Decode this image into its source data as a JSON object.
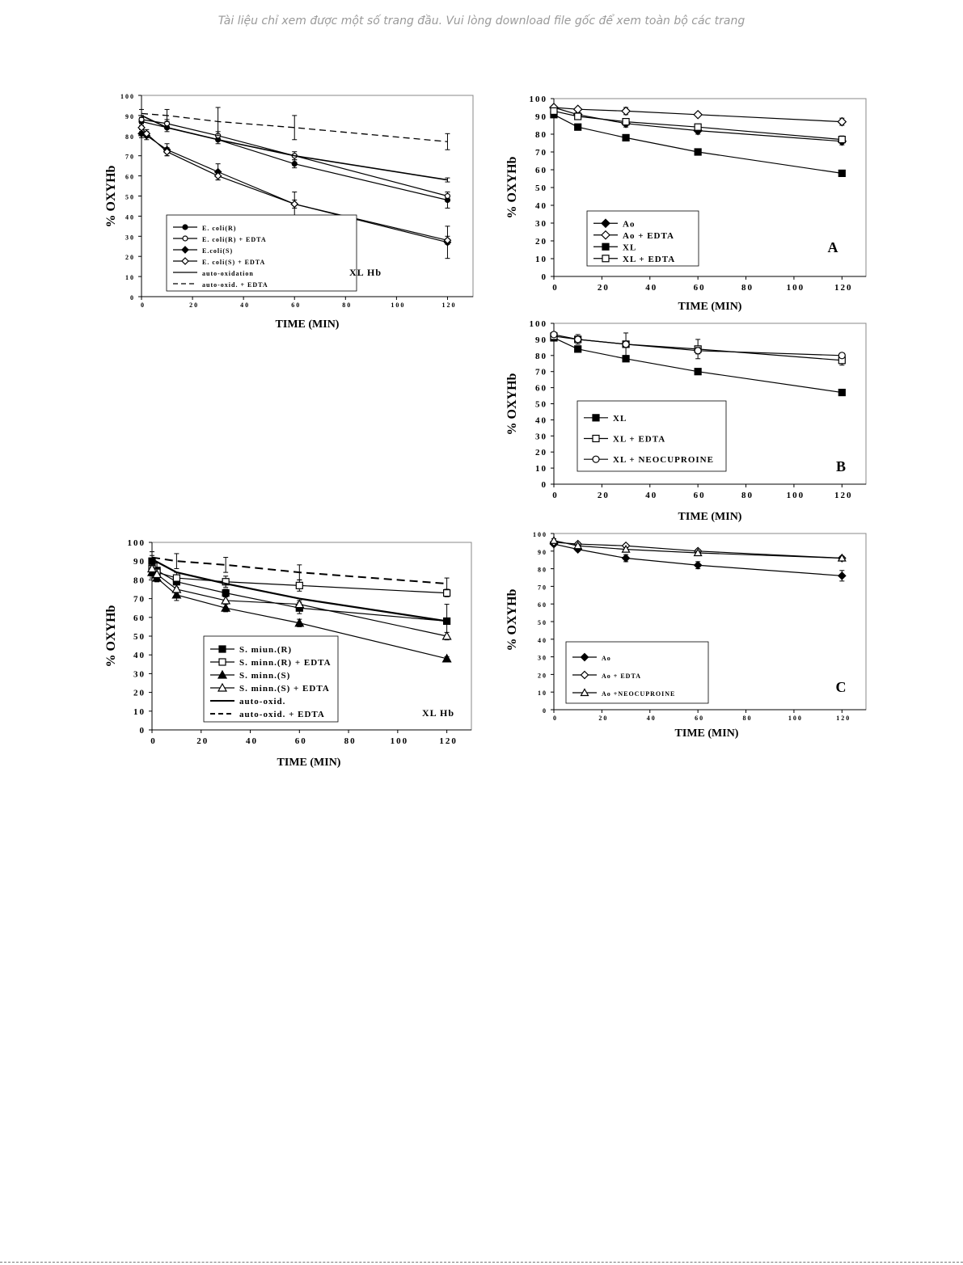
{
  "banner": "Tài liệu chỉ xem được một số trang đầu. Vui lòng download file gốc để xem toàn bộ các trang",
  "chart_data": [
    {
      "id": "ecoli",
      "type": "line",
      "title": "",
      "xlabel": "TIME (MIN)",
      "ylabel": "% OXYHb",
      "xlim": [
        0,
        130
      ],
      "ylim": [
        0,
        100
      ],
      "xticks": [
        "0",
        "20",
        "40",
        "60",
        "80",
        "100",
        "120"
      ],
      "yticks": [
        "0",
        "10",
        "20",
        "30",
        "40",
        "50",
        "60",
        "70",
        "80",
        "90",
        "100"
      ],
      "annotation": "XL Hb",
      "legend_position": "bottom-left",
      "series": [
        {
          "name": "E. coli(R)",
          "marker": "circle-filled",
          "x": [
            0,
            10,
            30,
            60,
            120
          ],
          "y": [
            87,
            84,
            78,
            66,
            48
          ],
          "err": [
            2,
            2,
            2,
            2,
            4
          ]
        },
        {
          "name": "E. coli(R) + EDTA",
          "marker": "circle-open",
          "x": [
            0,
            10,
            30,
            60,
            120
          ],
          "y": [
            88,
            86,
            80,
            70,
            50
          ],
          "err": [
            2,
            2,
            2,
            2,
            2
          ]
        },
        {
          "name": "E.coli(S)",
          "marker": "diamond-filled",
          "x": [
            0,
            2,
            10,
            30,
            60,
            120
          ],
          "y": [
            81,
            80,
            73,
            62,
            46,
            27
          ],
          "err": [
            2,
            2,
            3,
            4,
            6,
            8
          ]
        },
        {
          "name": "E. coli(S) + EDTA",
          "marker": "diamond-open",
          "x": [
            0,
            2,
            10,
            30,
            60,
            120
          ],
          "y": [
            84,
            81,
            72,
            60,
            46,
            28
          ],
          "err": [
            2,
            2,
            2,
            2,
            2,
            2
          ]
        },
        {
          "name": "auto-oxidation",
          "marker": "none",
          "line": "solid",
          "x": [
            0,
            10,
            30,
            60,
            120
          ],
          "y": [
            90,
            84,
            78,
            70,
            58
          ],
          "err": [
            0,
            0,
            0,
            0,
            1
          ]
        },
        {
          "name": "auto-oxid. + EDTA",
          "marker": "none",
          "line": "dashed",
          "x": [
            0,
            10,
            30,
            60,
            120
          ],
          "y": [
            91,
            90,
            87,
            84,
            77
          ],
          "err": [
            2,
            3,
            7,
            6,
            4
          ]
        }
      ]
    },
    {
      "id": "panelA",
      "type": "line",
      "title": "",
      "xlabel": "TIME (MIN)",
      "ylabel": "% OXYHb",
      "xlim": [
        0,
        130
      ],
      "ylim": [
        0,
        100
      ],
      "xticks": [
        "0",
        "20",
        "40",
        "60",
        "80",
        "100",
        "120"
      ],
      "yticks": [
        "0",
        "10",
        "20",
        "30",
        "40",
        "50",
        "60",
        "70",
        "80",
        "90",
        "100"
      ],
      "panel_letter": "A",
      "legend_position": "bottom-left",
      "series": [
        {
          "name": "Ao",
          "marker": "diamond-filled",
          "x": [
            0,
            10,
            30,
            60,
            120
          ],
          "y": [
            95,
            91,
            86,
            82,
            76
          ],
          "err": [
            1,
            1,
            2,
            2,
            2
          ]
        },
        {
          "name": "Ao + EDTA",
          "marker": "diamond-open",
          "x": [
            0,
            10,
            30,
            60,
            120
          ],
          "y": [
            95,
            94,
            93,
            91,
            87
          ],
          "err": [
            1,
            1,
            2,
            1,
            2
          ]
        },
        {
          "name": "XL",
          "marker": "square-filled",
          "x": [
            0,
            10,
            30,
            60,
            120
          ],
          "y": [
            91,
            84,
            78,
            70,
            58
          ],
          "err": [
            0,
            0,
            0,
            0,
            0
          ]
        },
        {
          "name": "XL + EDTA",
          "marker": "square-open",
          "x": [
            0,
            10,
            30,
            60,
            120
          ],
          "y": [
            93,
            90,
            87,
            84,
            77
          ],
          "err": [
            1,
            1,
            1,
            1,
            2
          ]
        }
      ]
    },
    {
      "id": "panelB",
      "type": "line",
      "title": "",
      "xlabel": "TIME (MIN)",
      "ylabel": "% OXYHb",
      "xlim": [
        0,
        130
      ],
      "ylim": [
        0,
        100
      ],
      "xticks": [
        "0",
        "20",
        "40",
        "60",
        "80",
        "100",
        "120"
      ],
      "yticks": [
        "0",
        "10",
        "20",
        "30",
        "40",
        "50",
        "60",
        "70",
        "80",
        "90",
        "100"
      ],
      "panel_letter": "B",
      "legend_position": "bottom-center",
      "series": [
        {
          "name": "XL",
          "marker": "square-filled",
          "x": [
            0,
            10,
            30,
            60,
            120
          ],
          "y": [
            91,
            84,
            78,
            70,
            57
          ],
          "err": [
            0,
            0,
            0,
            0,
            0
          ]
        },
        {
          "name": "XL + EDTA",
          "marker": "square-open",
          "x": [
            0,
            10,
            30,
            60,
            120
          ],
          "y": [
            92,
            90,
            87,
            84,
            77
          ],
          "err": [
            2,
            3,
            7,
            6,
            3
          ]
        },
        {
          "name": "XL + NEOCUPROINE",
          "marker": "circle-open",
          "x": [
            0,
            10,
            30,
            60,
            120
          ],
          "y": [
            93,
            90,
            87,
            83,
            80
          ],
          "err": [
            1,
            2,
            2,
            2,
            1
          ]
        }
      ]
    },
    {
      "id": "sminn",
      "type": "line",
      "title": "",
      "xlabel": "TIME (MIN)",
      "ylabel": "% OXYHb",
      "xlim": [
        0,
        130
      ],
      "ylim": [
        0,
        100
      ],
      "xticks": [
        "0",
        "20",
        "40",
        "60",
        "80",
        "100",
        "120"
      ],
      "yticks": [
        "0",
        "10",
        "20",
        "30",
        "40",
        "50",
        "60",
        "70",
        "80",
        "90",
        "100"
      ],
      "annotation": "XL Hb",
      "legend_position": "bottom-center",
      "series": [
        {
          "name": "S. miun.(R)",
          "marker": "square-filled",
          "x": [
            0,
            2,
            10,
            30,
            60,
            120
          ],
          "y": [
            90,
            85,
            79,
            73,
            65,
            58
          ],
          "err": [
            3,
            4,
            3,
            2,
            3,
            9
          ]
        },
        {
          "name": "S. minn.(R) + EDTA",
          "marker": "square-open",
          "x": [
            0,
            2,
            10,
            30,
            60,
            120
          ],
          "y": [
            86,
            84,
            81,
            79,
            77,
            73
          ],
          "err": [
            4,
            5,
            3,
            3,
            3,
            2
          ]
        },
        {
          "name": "S. minn.(S)",
          "marker": "triangle-filled",
          "x": [
            0,
            2,
            10,
            30,
            60,
            120
          ],
          "y": [
            84,
            81,
            72,
            65,
            57,
            38
          ],
          "err": [
            3,
            2,
            3,
            2,
            2,
            1
          ]
        },
        {
          "name": "S. minn.(S) + EDTA",
          "marker": "triangle-open",
          "x": [
            0,
            2,
            10,
            30,
            60,
            120
          ],
          "y": [
            86,
            83,
            75,
            69,
            67,
            50
          ],
          "err": [
            3,
            3,
            3,
            2,
            2,
            2
          ]
        },
        {
          "name": "auto-oxid.",
          "marker": "none",
          "line": "solid-thick",
          "x": [
            0,
            10,
            30,
            60,
            120
          ],
          "y": [
            91,
            84,
            78,
            70,
            58
          ],
          "err": [
            0,
            0,
            0,
            0,
            1
          ]
        },
        {
          "name": "auto-oxid. + EDTA",
          "marker": "none",
          "line": "dashed-thick",
          "x": [
            0,
            10,
            30,
            60,
            120
          ],
          "y": [
            92,
            90,
            88,
            84,
            78
          ],
          "err": [
            3,
            4,
            4,
            4,
            3
          ]
        }
      ]
    },
    {
      "id": "panelC",
      "type": "line",
      "title": "",
      "xlabel": "TIME (MIN)",
      "ylabel": "% OXYHb",
      "xlim": [
        0,
        130
      ],
      "ylim": [
        0,
        100
      ],
      "xticks": [
        "0",
        "20",
        "40",
        "60",
        "80",
        "100",
        "120"
      ],
      "yticks": [
        "0",
        "10",
        "20",
        "30",
        "40",
        "50",
        "60",
        "70",
        "80",
        "90",
        "100"
      ],
      "panel_letter": "C",
      "legend_position": "bottom-left",
      "series": [
        {
          "name": "Ao",
          "marker": "diamond-filled",
          "x": [
            0,
            10,
            30,
            60,
            120
          ],
          "y": [
            94,
            91,
            86,
            82,
            76
          ],
          "err": [
            1,
            1,
            2,
            2,
            3
          ]
        },
        {
          "name": "Ao + EDTA",
          "marker": "diamond-open",
          "x": [
            0,
            10,
            30,
            60,
            120
          ],
          "y": [
            95,
            94,
            93,
            90,
            86
          ],
          "err": [
            1,
            1,
            1,
            1,
            1
          ]
        },
        {
          "name": "Ao +NEOCUPROINE",
          "marker": "triangle-open",
          "x": [
            0,
            10,
            30,
            60,
            120
          ],
          "y": [
            96,
            93,
            91,
            89,
            86
          ],
          "err": [
            1,
            1,
            1,
            1,
            1
          ]
        }
      ]
    }
  ]
}
